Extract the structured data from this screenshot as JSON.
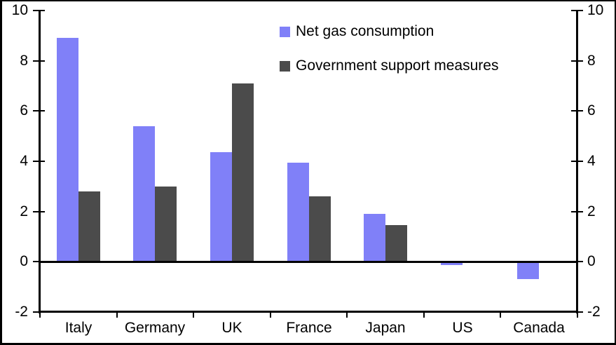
{
  "chart_data": {
    "type": "bar",
    "title": "",
    "categories": [
      "Italy",
      "Germany",
      "UK",
      "France",
      "Japan",
      "US",
      "Canada"
    ],
    "series": [
      {
        "name": "Net gas consumption",
        "color": "#8080F8",
        "values": [
          8.9,
          5.4,
          4.35,
          3.95,
          1.9,
          -0.15,
          -0.7
        ]
      },
      {
        "name": "Government support measures",
        "color": "#4B4B4B",
        "values": [
          2.8,
          3.0,
          7.1,
          2.6,
          1.45,
          0,
          0
        ]
      }
    ],
    "y_axis": {
      "min": -2,
      "max": 10,
      "tick_step": 2,
      "ticks": [
        10,
        8,
        6,
        4,
        2,
        0,
        -2
      ]
    },
    "right_axis": {
      "mirrors_left": true,
      "ticks": [
        10,
        8,
        6,
        4,
        2,
        0,
        -2
      ]
    },
    "xlabel": "",
    "ylabel": "",
    "grid": false,
    "legend_position": "top-right-inside",
    "axis_color": "#000000",
    "background": "#ffffff",
    "frame_color": "#000000"
  }
}
